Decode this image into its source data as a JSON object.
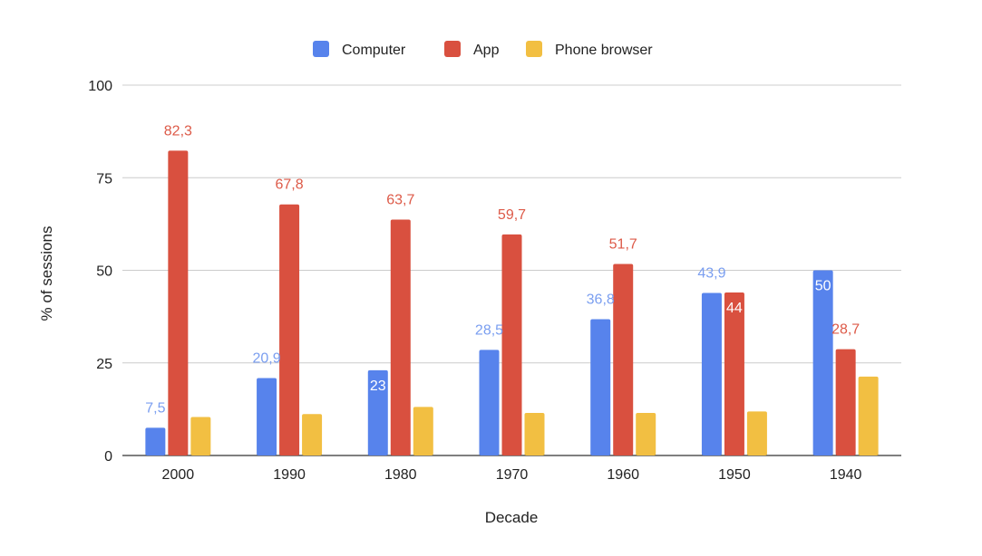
{
  "chart_data": {
    "type": "bar",
    "xlabel": "Decade",
    "ylabel": "% of sessions",
    "ylim": [
      0,
      100
    ],
    "yticks": [
      0,
      25,
      50,
      75,
      100
    ],
    "grid": true,
    "legend_position": "top",
    "categories": [
      "2000",
      "1990",
      "1980",
      "1970",
      "1960",
      "1950",
      "1940"
    ],
    "series": [
      {
        "name": "Computer",
        "color": "#5783ec",
        "label_color": "#7a9ef0",
        "values": [
          7.5,
          20.9,
          23,
          28.5,
          36.8,
          43.9,
          50
        ],
        "labels": [
          "7,5",
          "20,9",
          "23",
          "28,5",
          "36,8",
          "43,9",
          "50"
        ],
        "label_inside": [
          false,
          false,
          true,
          false,
          false,
          false,
          true
        ]
      },
      {
        "name": "App",
        "color": "#d9503f",
        "label_color": "#dd5a48",
        "values": [
          82.3,
          67.8,
          63.7,
          59.7,
          51.7,
          44,
          28.7
        ],
        "labels": [
          "82,3",
          "67,8",
          "63,7",
          "59,7",
          "51,7",
          "44",
          "28,7"
        ],
        "label_inside": [
          false,
          false,
          false,
          false,
          false,
          true,
          false
        ]
      },
      {
        "name": "Phone browser",
        "color": "#f2bf42",
        "values": [
          10.4,
          11.2,
          13.1,
          11.5,
          11.5,
          11.9,
          21.3
        ],
        "labels": null
      }
    ]
  }
}
